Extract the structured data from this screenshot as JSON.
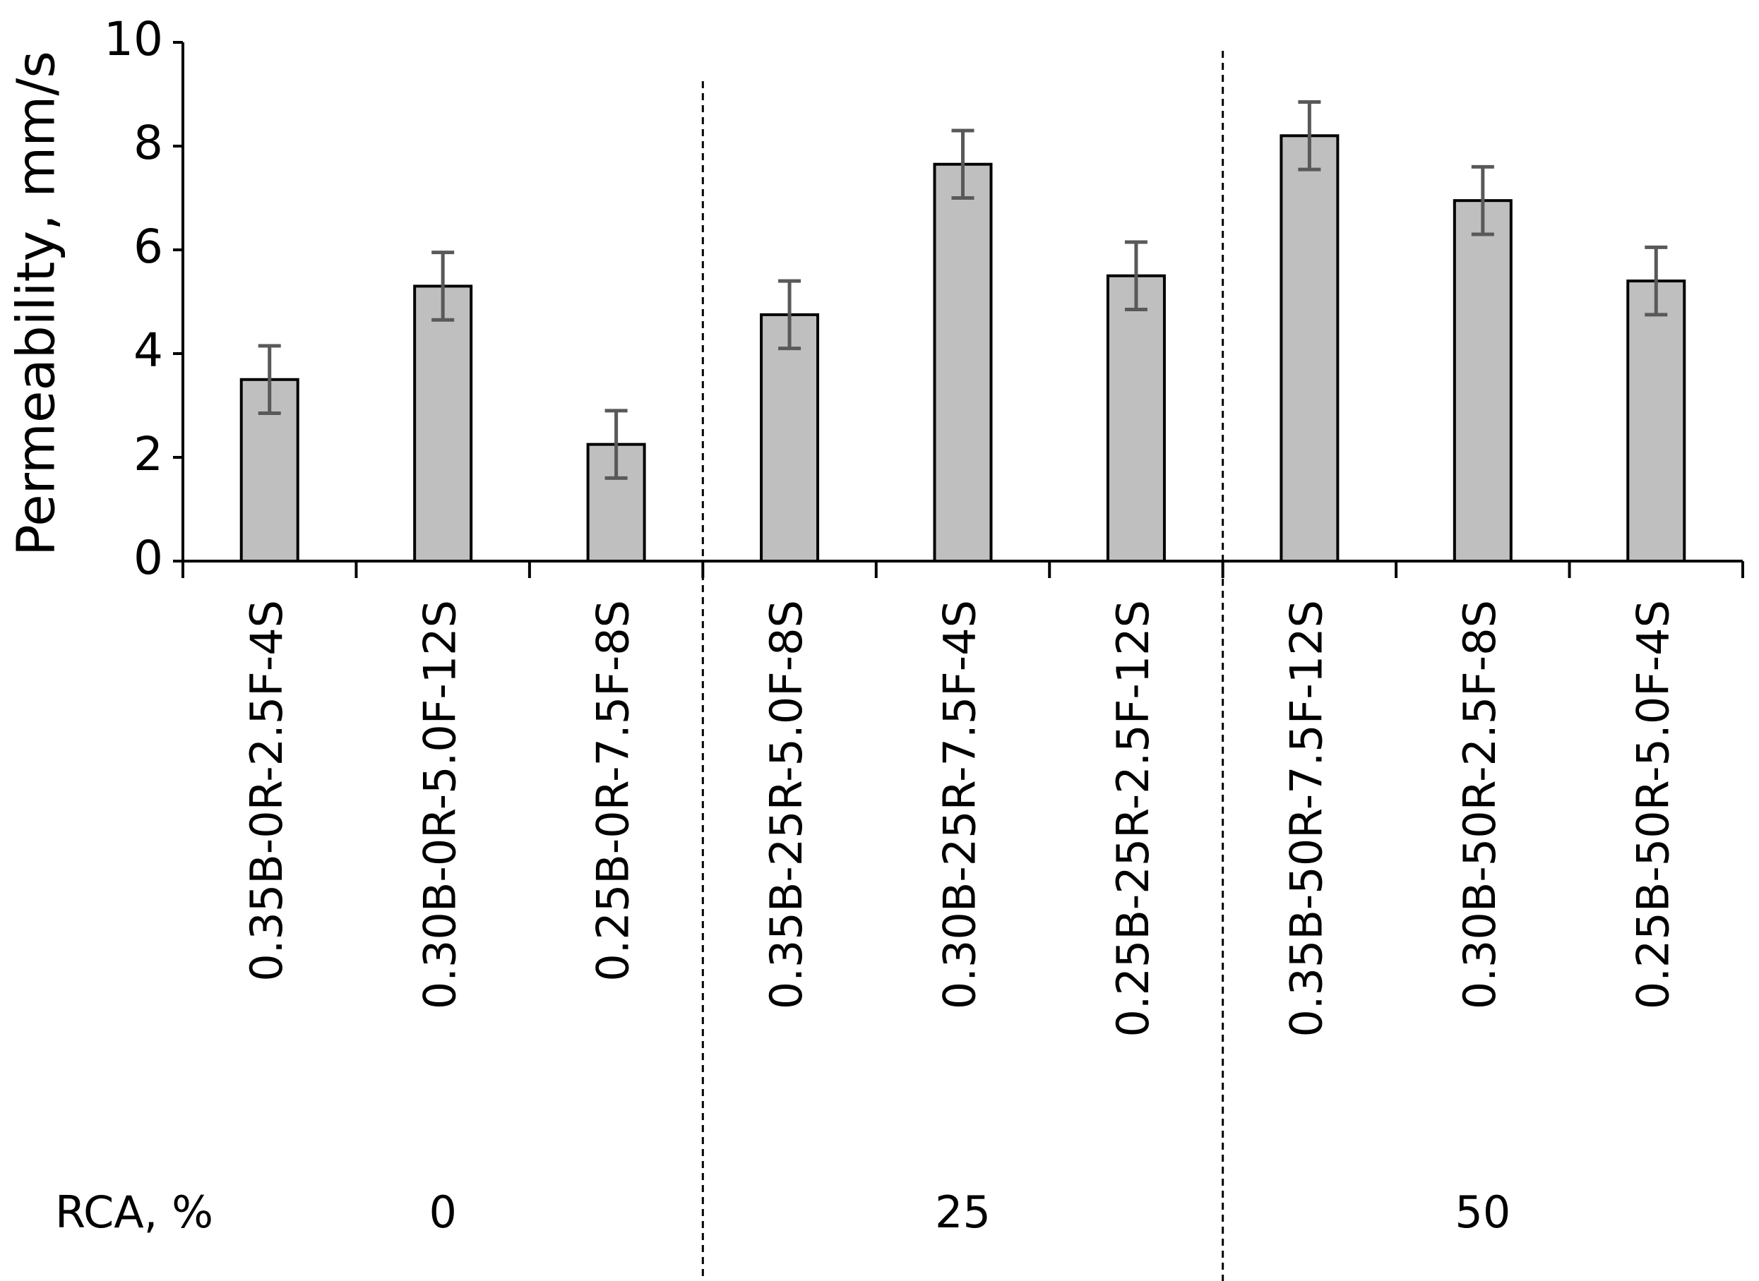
{
  "chart_data": {
    "type": "bar",
    "y_label": "Permeability, mm/s",
    "categories": [
      "0.35B-0R-2.5F-4S",
      "0.30B-0R-5.0F-12S",
      "0.25B-0R-7.5F-8S",
      "0.35B-25R-5.0F-8S",
      "0.30B-25R-7.5F-4S",
      "0.25B-25R-2.5F-12S",
      "0.35B-50R-7.5F-12S",
      "0.30B-50R-2.5F-8S",
      "0.25B-50R-5.0F-4S"
    ],
    "values": [
      3.5,
      5.3,
      2.25,
      4.75,
      7.65,
      5.5,
      8.2,
      6.95,
      5.4
    ],
    "errors": [
      0.65,
      0.65,
      0.65,
      0.65,
      0.65,
      0.65,
      0.65,
      0.65,
      0.65
    ],
    "color": "#bfbfbf",
    "error_color": "#595959",
    "group_title": "RCA, %",
    "groups": [
      "0",
      "25",
      "50"
    ],
    "ylim": [
      0,
      10
    ],
    "yticks": [
      0,
      2,
      4,
      6,
      8,
      10
    ]
  }
}
